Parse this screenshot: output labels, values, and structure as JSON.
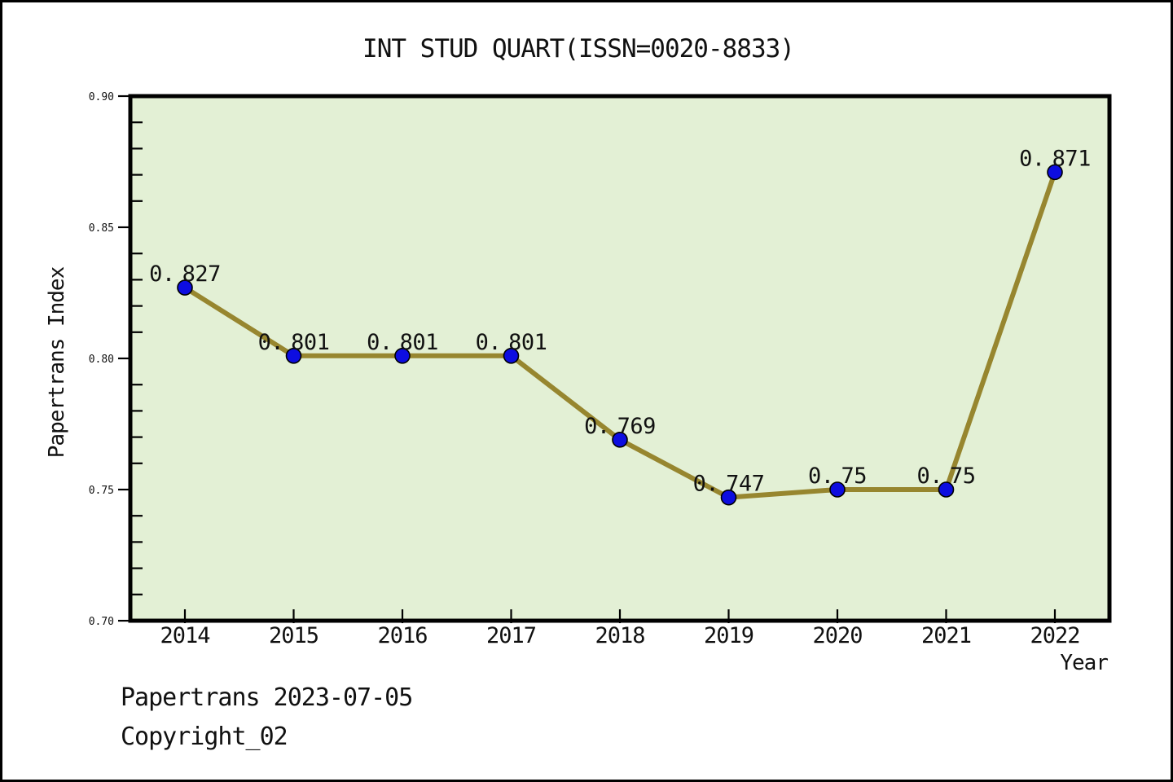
{
  "window": {
    "background": "#ffffff",
    "frame_border_color": "#000000"
  },
  "chart_data": {
    "type": "line",
    "title": "INT STUD QUART(ISSN=0020-8833)",
    "xlabel": "Year",
    "ylabel": "Papertrans Index",
    "categories": [
      "2014",
      "2015",
      "2016",
      "2017",
      "2018",
      "2019",
      "2020",
      "2021",
      "2022"
    ],
    "series": [
      {
        "name": "Papertrans Index",
        "values": [
          0.827,
          0.801,
          0.801,
          0.801,
          0.769,
          0.747,
          0.75,
          0.75,
          0.871
        ],
        "labels": [
          "0.827",
          "0.801",
          "0.801",
          "0.801",
          "0.769",
          "0.747",
          "0.75",
          "0.75",
          "0.871"
        ]
      }
    ],
    "ylim": [
      0.7,
      0.9
    ],
    "y_major_ticks": [
      {
        "value": 0.7,
        "label": "0.70"
      },
      {
        "value": 0.75,
        "label": "0.75"
      },
      {
        "value": 0.8,
        "label": "0.80"
      },
      {
        "value": 0.85,
        "label": "0.85"
      },
      {
        "value": 0.9,
        "label": "0.90"
      }
    ],
    "y_minor_step": 0.01,
    "grid": false,
    "legend": null,
    "colors": {
      "plot_background": "#e3f0d5",
      "line": "#97862f",
      "marker_fill": "#0d0de0",
      "marker_edge": "#000000",
      "axis": "#000000",
      "text": "#111111"
    }
  },
  "footer": {
    "line1": "Papertrans 2023-07-05",
    "line2": "Copyright_02"
  }
}
